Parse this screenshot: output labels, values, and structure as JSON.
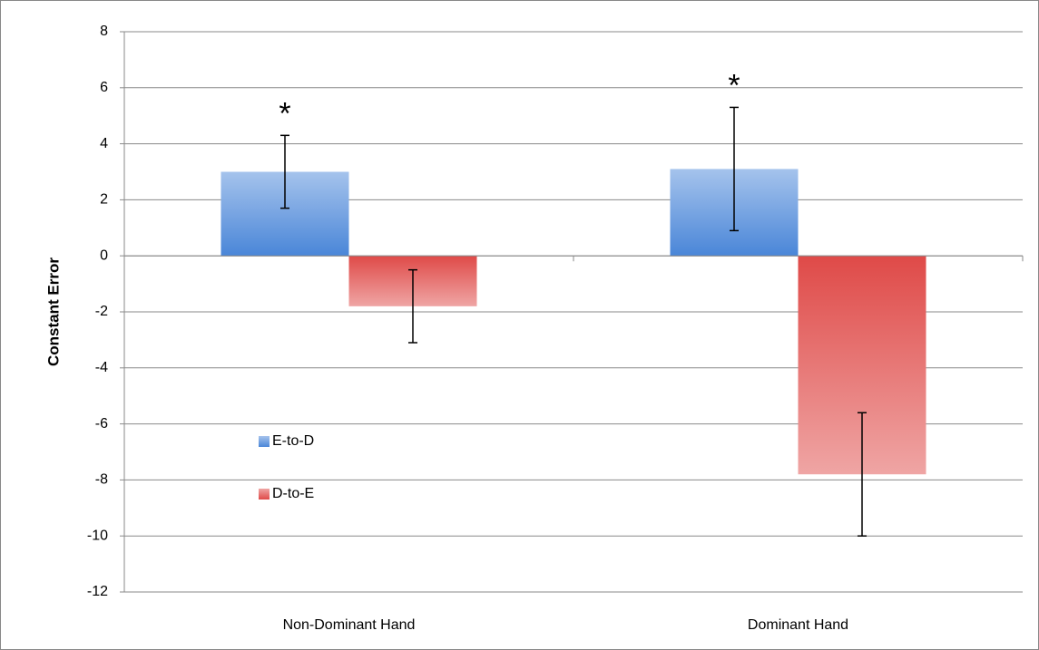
{
  "chart_data": {
    "type": "bar",
    "y_label": "Constant Error",
    "categories": [
      "Non-Dominant Hand",
      "Dominant Hand"
    ],
    "series": [
      {
        "name": "E-to-D",
        "color": "#4a86d8",
        "values": [
          3.0,
          3.1
        ],
        "errors": [
          1.3,
          2.2
        ]
      },
      {
        "name": "D-to-E",
        "color": "#df4a48",
        "values": [
          -1.8,
          -7.8
        ],
        "errors": [
          1.3,
          2.2
        ]
      }
    ],
    "annotations": [
      "*",
      "*"
    ],
    "ylim": [
      -12,
      8
    ],
    "yticks": [
      -12,
      -10,
      -8,
      -6,
      -4,
      -2,
      0,
      2,
      4,
      6,
      8
    ],
    "grid": true,
    "legend": "lower left"
  }
}
